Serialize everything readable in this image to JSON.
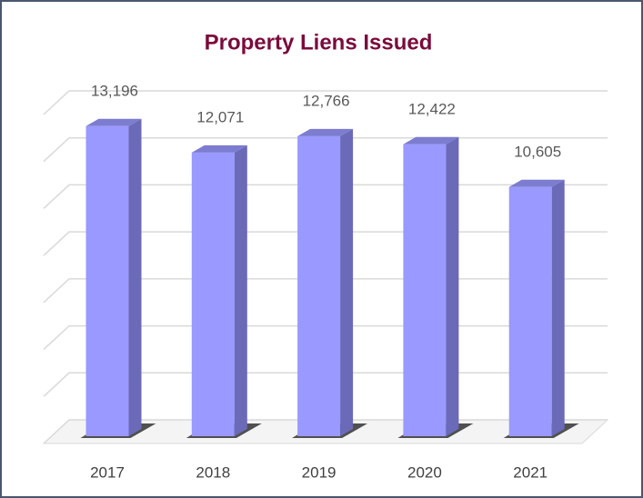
{
  "chart_data": {
    "type": "bar",
    "title": "Property Liens Issued",
    "categories": [
      "2017",
      "2018",
      "2019",
      "2020",
      "2021"
    ],
    "values": [
      13196,
      12071,
      12766,
      12422,
      10605
    ],
    "value_labels": [
      "13,196",
      "12,071",
      "12,766",
      "12,422",
      "10,605"
    ],
    "color": "#9999ff",
    "ylim": [
      0,
      14000
    ],
    "yticks": [
      0,
      2000,
      4000,
      6000,
      8000,
      10000,
      12000,
      14000
    ],
    "grid": true
  }
}
